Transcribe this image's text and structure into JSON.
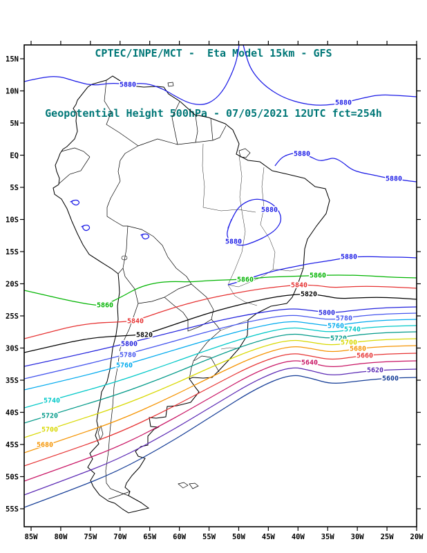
{
  "header": {
    "title_line1": "CPTEC/INPE/MCT -  Eta Model 15km - GFS",
    "title_line2": "Geopotential Height 500hPa - 07/05/2021 12UTC fct=254h",
    "title_color": "#007777"
  },
  "axes": {
    "lat_labels": [
      "15N",
      "10N",
      "5N",
      "EQ",
      "5S",
      "10S",
      "15S",
      "20S",
      "25S",
      "30S",
      "35S",
      "40S",
      "45S",
      "50S",
      "55S"
    ],
    "lon_labels": [
      "85W",
      "80W",
      "75W",
      "70W",
      "65W",
      "60W",
      "55W",
      "50W",
      "45W",
      "40W",
      "35W",
      "30W",
      "25W",
      "20W"
    ],
    "label_color": "#000000"
  },
  "chart_data": {
    "type": "contour-map",
    "field": "Geopotential Height",
    "pressure_level": "500hPa",
    "model": "Eta Model 15km - GFS",
    "run": "07/05/2021 12UTC",
    "forecast": "fct=254h",
    "units": "m",
    "contour_interval": 20,
    "region": "South America",
    "levels": [
      {
        "value": 5880,
        "color": "#1a1ae6",
        "labels": [
          [
            185,
            122
          ],
          [
            497,
            148
          ],
          [
            437,
            222
          ],
          [
            570,
            258
          ],
          [
            390,
            303
          ],
          [
            338,
            349
          ],
          [
            505,
            371
          ]
        ]
      },
      {
        "value": 5860,
        "color": "#00b400",
        "labels": [
          [
            152,
            441
          ],
          [
            355,
            404
          ],
          [
            460,
            398
          ]
        ]
      },
      {
        "value": 5840,
        "color": "#e63232",
        "labels": [
          [
            196,
            464
          ],
          [
            433,
            412
          ]
        ]
      },
      {
        "value": 5820,
        "color": "#000000",
        "labels": [
          [
            209,
            484
          ],
          [
            447,
            425
          ]
        ]
      },
      {
        "value": 5800,
        "color": "#2222dd",
        "labels": [
          [
            187,
            497
          ],
          [
            473,
            452
          ]
        ]
      },
      {
        "value": 5780,
        "color": "#4455ee",
        "labels": [
          [
            185,
            513
          ],
          [
            498,
            460
          ]
        ]
      },
      {
        "value": 5760,
        "color": "#00aaee",
        "labels": [
          [
            180,
            528
          ],
          [
            486,
            471
          ]
        ]
      },
      {
        "value": 5740,
        "color": "#00c8c8",
        "labels": [
          [
            75,
            579
          ],
          [
            510,
            476
          ]
        ]
      },
      {
        "value": 5720,
        "color": "#009988",
        "labels": [
          [
            72,
            601
          ],
          [
            490,
            489
          ]
        ]
      },
      {
        "value": 5700,
        "color": "#d8d800",
        "labels": [
          [
            72,
            621
          ],
          [
            505,
            495
          ]
        ]
      },
      {
        "value": 5680,
        "color": "#f59300",
        "labels": [
          [
            65,
            643
          ],
          [
            518,
            504
          ]
        ]
      },
      {
        "value": 5660,
        "color": "#e63232",
        "labels": [
          [
            528,
            514
          ]
        ]
      },
      {
        "value": 5640,
        "color": "#c81464",
        "labels": [
          [
            448,
            524
          ]
        ]
      },
      {
        "value": 5620,
        "color": "#5a28b4",
        "labels": [
          [
            543,
            535
          ]
        ]
      },
      {
        "value": 5600,
        "color": "#143c96",
        "labels": [
          [
            565,
            547
          ]
        ]
      }
    ]
  }
}
